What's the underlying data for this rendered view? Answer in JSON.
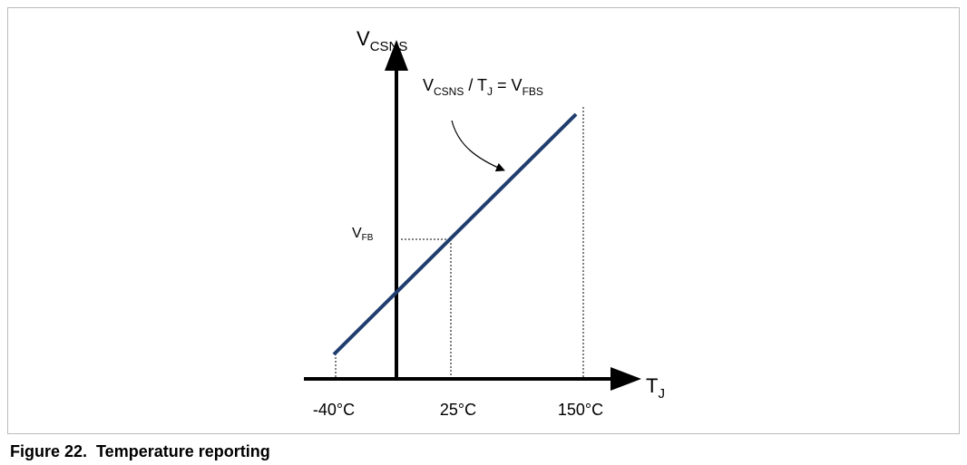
{
  "y_axis_label": {
    "main": "V",
    "sub": "CSNS"
  },
  "x_axis_label": {
    "main": "T",
    "sub": "J"
  },
  "equation": {
    "parts": [
      "V",
      "CSNS",
      " / T",
      "J",
      " = V",
      "FBS"
    ]
  },
  "marker_label": {
    "main": "V",
    "sub": "FB"
  },
  "x_ticks": [
    "-40°C",
    "25°C",
    "150°C"
  ],
  "caption": "Figure 22.  Temperature reporting"
}
